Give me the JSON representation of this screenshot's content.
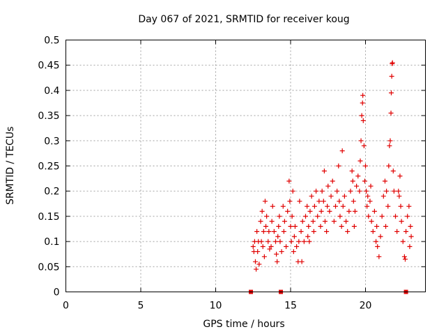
{
  "chart_data": {
    "type": "scatter",
    "title": "Day 067 of 2021, SRMTID for receiver koug",
    "xlabel": "GPS time / hours",
    "ylabel": "SRMTID / TECUs",
    "xlim": [
      0,
      24
    ],
    "ylim": [
      0,
      0.5
    ],
    "x_ticks": [
      "0",
      "5",
      "10",
      "15",
      "20"
    ],
    "y_ticks": [
      "0",
      "0.05",
      "0.1",
      "0.15",
      "0.2",
      "0.25",
      "0.3",
      "0.35",
      "0.4",
      "0.45",
      "0.5"
    ],
    "x_tick_values": [
      0,
      5,
      10,
      15,
      20
    ],
    "y_tick_values": [
      0,
      0.05,
      0.1,
      0.15,
      0.2,
      0.25,
      0.3,
      0.35,
      0.4,
      0.45,
      0.5
    ],
    "grid": true,
    "marker": "+",
    "color": "#e00000",
    "zero_markers_x": [
      12.35,
      14.35,
      22.7
    ],
    "series": [
      {
        "name": "SRMTID",
        "points": [
          [
            12.5,
            0.09
          ],
          [
            12.6,
            0.1
          ],
          [
            12.65,
            0.06
          ],
          [
            12.7,
            0.045
          ],
          [
            12.75,
            0.12
          ],
          [
            12.8,
            0.08
          ],
          [
            12.85,
            0.1
          ],
          [
            12.9,
            0.055
          ],
          [
            13.0,
            0.14
          ],
          [
            13.05,
            0.1
          ],
          [
            13.1,
            0.16
          ],
          [
            13.15,
            0.09
          ],
          [
            13.2,
            0.12
          ],
          [
            13.3,
            0.18
          ],
          [
            13.35,
            0.13
          ],
          [
            13.4,
            0.15
          ],
          [
            13.5,
            0.1
          ],
          [
            13.55,
            0.12
          ],
          [
            13.6,
            0.085
          ],
          [
            13.7,
            0.09
          ],
          [
            13.75,
            0.14
          ],
          [
            13.8,
            0.17
          ],
          [
            13.9,
            0.12
          ],
          [
            14.0,
            0.1
          ],
          [
            14.05,
            0.075
          ],
          [
            14.1,
            0.06
          ],
          [
            14.2,
            0.13
          ],
          [
            14.25,
            0.15
          ],
          [
            14.3,
            0.1
          ],
          [
            14.4,
            0.08
          ],
          [
            14.5,
            0.17
          ],
          [
            14.55,
            0.12
          ],
          [
            14.6,
            0.14
          ],
          [
            14.7,
            0.09
          ],
          [
            14.8,
            0.16
          ],
          [
            14.9,
            0.22
          ],
          [
            14.95,
            0.18
          ],
          [
            15.0,
            0.13
          ],
          [
            15.05,
            0.1
          ],
          [
            15.1,
            0.15
          ],
          [
            15.2,
            0.08
          ],
          [
            15.25,
            0.11
          ],
          [
            15.3,
            0.13
          ],
          [
            15.4,
            0.09
          ],
          [
            15.5,
            0.06
          ],
          [
            15.55,
            0.1
          ],
          [
            15.6,
            0.18
          ],
          [
            15.7,
            0.12
          ],
          [
            15.75,
            0.06
          ],
          [
            15.8,
            0.14
          ],
          [
            15.9,
            0.1
          ],
          [
            16.0,
            0.15
          ],
          [
            16.1,
            0.17
          ],
          [
            16.2,
            0.13
          ],
          [
            16.25,
            0.1
          ],
          [
            16.3,
            0.16
          ],
          [
            16.4,
            0.19
          ],
          [
            16.5,
            0.14
          ],
          [
            16.55,
            0.12
          ],
          [
            16.6,
            0.17
          ],
          [
            16.7,
            0.2
          ],
          [
            16.8,
            0.15
          ],
          [
            16.9,
            0.18
          ],
          [
            17.0,
            0.13
          ],
          [
            17.05,
            0.16
          ],
          [
            17.1,
            0.2
          ],
          [
            17.2,
            0.18
          ],
          [
            17.3,
            0.14
          ],
          [
            17.4,
            0.12
          ],
          [
            17.45,
            0.17
          ],
          [
            17.5,
            0.21
          ],
          [
            17.6,
            0.16
          ],
          [
            17.7,
            0.19
          ],
          [
            17.8,
            0.22
          ],
          [
            17.9,
            0.14
          ],
          [
            18.0,
            0.17
          ],
          [
            18.1,
            0.2
          ],
          [
            18.2,
            0.25
          ],
          [
            18.25,
            0.18
          ],
          [
            18.3,
            0.15
          ],
          [
            18.4,
            0.13
          ],
          [
            18.5,
            0.17
          ],
          [
            18.6,
            0.19
          ],
          [
            18.7,
            0.14
          ],
          [
            18.8,
            0.12
          ],
          [
            18.9,
            0.16
          ],
          [
            19.0,
            0.2
          ],
          [
            19.1,
            0.24
          ],
          [
            19.15,
            0.22
          ],
          [
            19.2,
            0.18
          ],
          [
            19.3,
            0.16
          ],
          [
            19.4,
            0.21
          ],
          [
            19.5,
            0.23
          ],
          [
            19.6,
            0.2
          ],
          [
            19.65,
            0.26
          ],
          [
            19.7,
            0.3
          ],
          [
            19.75,
            0.35
          ],
          [
            19.8,
            0.375
          ],
          [
            19.82,
            0.39
          ],
          [
            19.85,
            0.34
          ],
          [
            19.9,
            0.29
          ],
          [
            19.95,
            0.22
          ],
          [
            20.0,
            0.25
          ],
          [
            20.05,
            0.2
          ],
          [
            20.1,
            0.17
          ],
          [
            20.2,
            0.15
          ],
          [
            20.3,
            0.18
          ],
          [
            20.35,
            0.21
          ],
          [
            20.4,
            0.14
          ],
          [
            20.5,
            0.12
          ],
          [
            20.6,
            0.16
          ],
          [
            20.7,
            0.1
          ],
          [
            20.75,
            0.13
          ],
          [
            20.8,
            0.09
          ],
          [
            20.9,
            0.07
          ],
          [
            21.0,
            0.11
          ],
          [
            21.1,
            0.15
          ],
          [
            21.2,
            0.19
          ],
          [
            21.3,
            0.22
          ],
          [
            21.4,
            0.2
          ],
          [
            21.5,
            0.17
          ],
          [
            21.55,
            0.25
          ],
          [
            21.6,
            0.29
          ],
          [
            21.65,
            0.3
          ],
          [
            21.7,
            0.355
          ],
          [
            21.72,
            0.395
          ],
          [
            21.75,
            0.428
          ],
          [
            21.78,
            0.453
          ],
          [
            21.8,
            0.455
          ],
          [
            21.85,
            0.24
          ],
          [
            21.9,
            0.2
          ],
          [
            22.0,
            0.15
          ],
          [
            22.1,
            0.12
          ],
          [
            22.2,
            0.2
          ],
          [
            22.3,
            0.23
          ],
          [
            22.35,
            0.17
          ],
          [
            22.4,
            0.14
          ],
          [
            22.5,
            0.1
          ],
          [
            22.6,
            0.07
          ],
          [
            22.65,
            0.065
          ],
          [
            22.7,
            0.12
          ],
          [
            22.8,
            0.15
          ],
          [
            22.9,
            0.17
          ],
          [
            23.0,
            0.13
          ],
          [
            23.05,
            0.11
          ],
          [
            12.55,
            0.08
          ],
          [
            13.25,
            0.07
          ],
          [
            14.15,
            0.11
          ],
          [
            15.15,
            0.2
          ],
          [
            16.15,
            0.11
          ],
          [
            17.25,
            0.24
          ],
          [
            18.45,
            0.28
          ],
          [
            19.25,
            0.13
          ],
          [
            20.15,
            0.19
          ],
          [
            21.35,
            0.13
          ],
          [
            22.25,
            0.19
          ],
          [
            22.95,
            0.09
          ]
        ]
      }
    ]
  }
}
